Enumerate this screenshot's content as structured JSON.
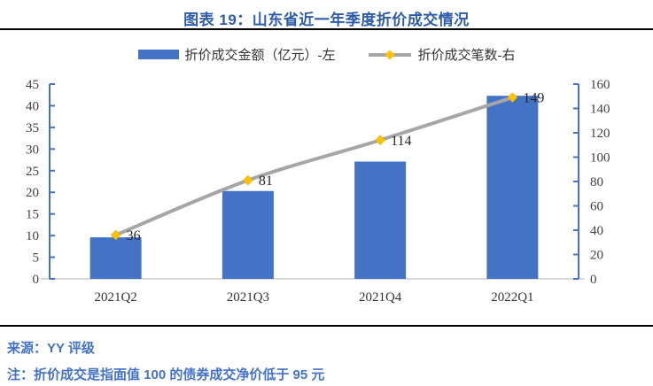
{
  "header": {
    "title": "图表 19：山东省近一年季度折价成交情况"
  },
  "legend": {
    "items": [
      {
        "label": "折价成交金额（亿元）-左",
        "swatch": "bar"
      },
      {
        "label": "折价成交笔数-右",
        "swatch": "line-diamond"
      }
    ]
  },
  "footer": {
    "source": "来源：YY 评级",
    "note": "注：折价成交是指面值 100 的债券成交净价低于 95 元"
  },
  "chart_data": {
    "type": "bar",
    "subtype": "combo-bar-line-dual-axis",
    "title": "图表 19：山东省近一年季度折价成交情况",
    "categories": [
      "2021Q2",
      "2021Q3",
      "2021Q4",
      "2022Q1"
    ],
    "series": [
      {
        "name": "折价成交金额（亿元）-左",
        "type": "bar",
        "axis": "left",
        "color": "#4472C4",
        "values": [
          9.6,
          20.3,
          27.1,
          42.3
        ]
      },
      {
        "name": "折价成交笔数-右",
        "type": "line",
        "axis": "right",
        "color": "#A6A6A6",
        "marker": "diamond",
        "marker_color": "#FFC000",
        "smooth": true,
        "values": [
          36,
          81,
          114,
          149
        ],
        "data_labels": [
          "36",
          "81",
          "114",
          "149"
        ]
      }
    ],
    "left_axis": {
      "min": 0,
      "max": 45,
      "step": 5,
      "ticks": [
        0,
        5,
        10,
        15,
        20,
        25,
        30,
        35,
        40,
        45
      ]
    },
    "right_axis": {
      "min": 0,
      "max": 160,
      "step": 20,
      "ticks": [
        0,
        20,
        40,
        60,
        80,
        100,
        120,
        140,
        160
      ]
    },
    "legend_position": "top",
    "grid": false
  },
  "colors": {
    "title_blue": "#2E5CA8",
    "note_blue": "#4472C4",
    "axis_blue": "#4472C4",
    "bar_blue": "#4472C4",
    "line_gray": "#A6A6A6",
    "marker_gold": "#FFC000",
    "baseline_gray": "#D9D9D9",
    "tick_label": "#404040",
    "data_label": "#262626",
    "rule_black": "#000000"
  }
}
